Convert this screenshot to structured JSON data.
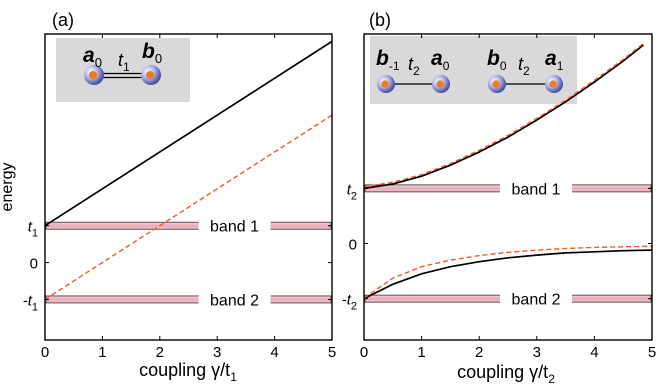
{
  "chart_data": [
    {
      "panel_label": "(a)",
      "type": "line",
      "xlabel": "coupling γ/t",
      "xlabel_sub": "1",
      "ylabel": "energy",
      "xlim": [
        0,
        5
      ],
      "xticks": [
        "0",
        "1",
        "2",
        "3",
        "4",
        "5"
      ],
      "yticks": [
        {
          "label": "t",
          "sub": "1",
          "value": 1
        },
        {
          "label": "0",
          "sub": "",
          "value": 0
        },
        {
          "label": "-t",
          "sub": "1",
          "value": -1
        }
      ],
      "ylim": [
        -2.1,
        6.2
      ],
      "bands": [
        {
          "label": "band 1",
          "center": 1
        },
        {
          "label": "band 2",
          "center": -1
        }
      ],
      "series": [
        {
          "style": "solid",
          "color": "#000000",
          "x": [
            0,
            5
          ],
          "y": [
            1,
            6
          ]
        },
        {
          "style": "dashed",
          "color": "#ef5b2a",
          "x": [
            0,
            5
          ],
          "y": [
            -1,
            4
          ]
        }
      ],
      "inset": {
        "sites": [
          {
            "symbol": "a",
            "sub": "0"
          },
          {
            "symbol": "b",
            "sub": "0"
          }
        ],
        "hopping": {
          "symbol": "t",
          "sub": "1"
        }
      }
    },
    {
      "panel_label": "(b)",
      "type": "line",
      "xlabel": "coupling γ/t",
      "xlabel_sub": "2",
      "xlim": [
        0,
        5
      ],
      "xticks": [
        "0",
        "1",
        "2",
        "3",
        "4",
        "5"
      ],
      "yticks": [
        {
          "label": "t",
          "sub": "2",
          "value": 1
        },
        {
          "label": "0",
          "sub": "",
          "value": 0
        },
        {
          "label": "-t",
          "sub": "2",
          "value": -1
        }
      ],
      "ylim": [
        -1.75,
        3.8
      ],
      "bands": [
        {
          "label": "band 1",
          "center": 1
        },
        {
          "label": "band 2",
          "center": -1
        }
      ],
      "series": [
        {
          "style": "solid",
          "color": "#000000",
          "x": [
            0,
            0.5,
            1,
            1.5,
            2,
            2.5,
            3,
            3.5,
            4,
            4.5,
            4.85
          ],
          "y": [
            1.0,
            1.08,
            1.22,
            1.42,
            1.66,
            1.93,
            2.24,
            2.57,
            2.93,
            3.31,
            3.6
          ]
        },
        {
          "style": "dashed",
          "color": "#ef5b2a",
          "x": [
            0,
            0.5,
            1,
            1.5,
            2,
            2.5,
            3,
            3.5,
            4,
            4.5,
            4.85
          ],
          "y": [
            1.03,
            1.11,
            1.25,
            1.45,
            1.69,
            1.96,
            2.27,
            2.6,
            2.96,
            3.34,
            3.63
          ]
        },
        {
          "style": "solid",
          "color": "#000000",
          "x": [
            0,
            0.5,
            1,
            1.5,
            2,
            2.5,
            3,
            3.5,
            4,
            4.5,
            5
          ],
          "y": [
            -1.0,
            -0.74,
            -0.55,
            -0.42,
            -0.33,
            -0.26,
            -0.21,
            -0.17,
            -0.15,
            -0.13,
            -0.12
          ]
        },
        {
          "style": "dashed",
          "color": "#ef5b2a",
          "x": [
            0,
            0.5,
            1,
            1.5,
            2,
            2.5,
            3,
            3.5,
            4,
            4.5,
            5
          ],
          "y": [
            -0.99,
            -0.63,
            -0.42,
            -0.3,
            -0.22,
            -0.16,
            -0.12,
            -0.09,
            -0.07,
            -0.06,
            -0.05
          ]
        }
      ],
      "inset": {
        "sites": [
          {
            "symbol": "b",
            "sub": "-1"
          },
          {
            "symbol": "a",
            "sub": "0"
          },
          {
            "symbol": "b",
            "sub": "0"
          },
          {
            "symbol": "a",
            "sub": "1"
          }
        ],
        "hopping": [
          {
            "symbol": "t",
            "sub": "2"
          },
          {
            "symbol": "t",
            "sub": "2"
          }
        ]
      }
    }
  ]
}
